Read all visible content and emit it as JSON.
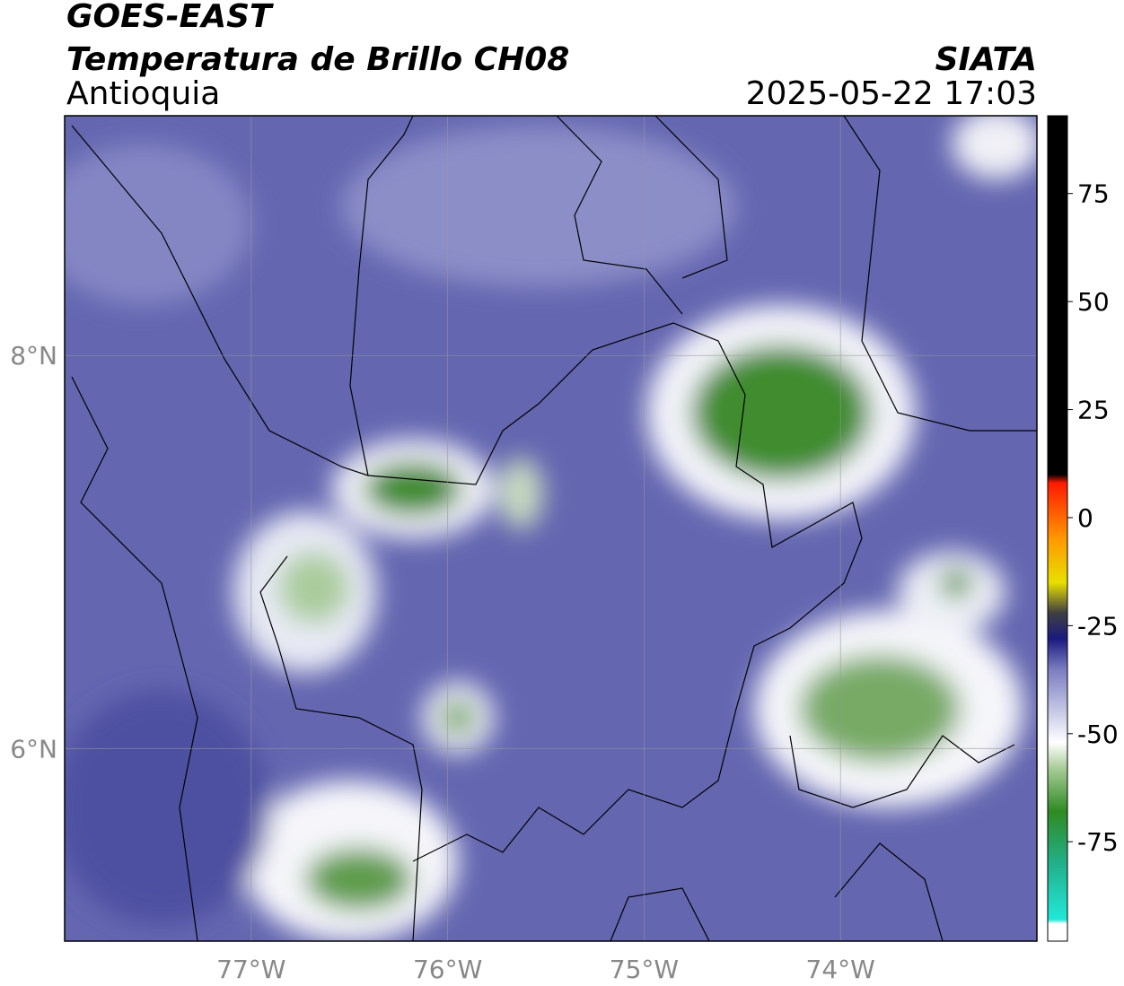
{
  "chart_data": {
    "type": "map",
    "title": "GOES-EAST",
    "subtitle": "Temperatura de Brillo CH08",
    "region": "Antioquia",
    "source": "SIATA",
    "timestamp": "2025-05-22 17:03",
    "xlim": [
      -77.95,
      -73.0
    ],
    "ylim": [
      5.02,
      9.22
    ],
    "xticks": [
      {
        "value": -77,
        "label": "77°W"
      },
      {
        "value": -76,
        "label": "76°W"
      },
      {
        "value": -75,
        "label": "75°W"
      },
      {
        "value": -74,
        "label": "74°W"
      }
    ],
    "yticks": [
      {
        "value": 8,
        "label": "8°N"
      },
      {
        "value": 6,
        "label": "6°N"
      }
    ],
    "grid": true,
    "clim": [
      -98,
      93
    ],
    "cticks": [
      75,
      50,
      25,
      0,
      -25,
      -50,
      -75
    ],
    "colormap": [
      [
        -98,
        "#ffffff"
      ],
      [
        -94,
        "#ffffff"
      ],
      [
        -93,
        "#22e8d8"
      ],
      [
        -80,
        "#22b08a"
      ],
      [
        -68,
        "#2e8b22"
      ],
      [
        -58,
        "#a8cc98"
      ],
      [
        -52,
        "#ffffff"
      ],
      [
        -45,
        "#c8cae6"
      ],
      [
        -35,
        "#7a7cc0"
      ],
      [
        -28,
        "#1a1a80"
      ],
      [
        -22,
        "#404040"
      ],
      [
        -15,
        "#e8e000"
      ],
      [
        -5,
        "#ff9900"
      ],
      [
        8,
        "#ff1a00"
      ],
      [
        10,
        "#000000"
      ],
      [
        93,
        "#000000"
      ]
    ]
  }
}
